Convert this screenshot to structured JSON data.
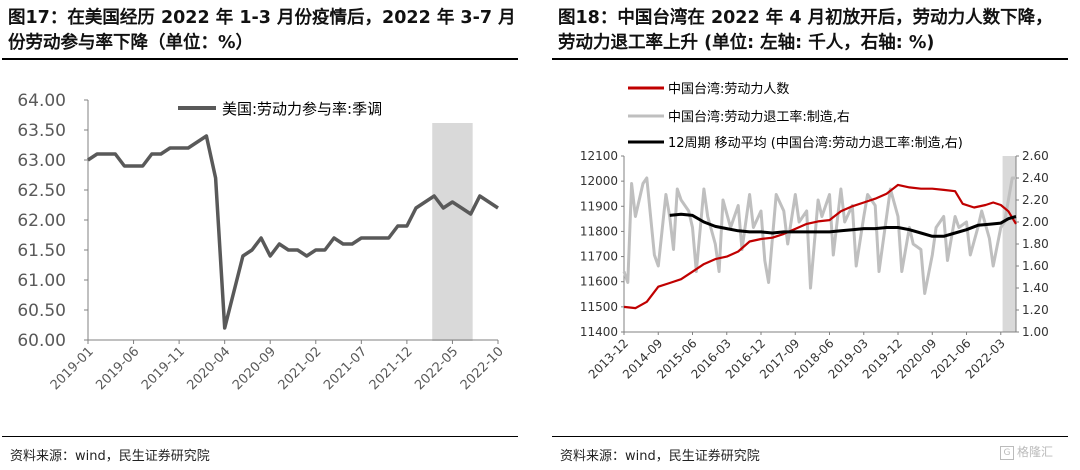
{
  "left_panel": {
    "title": "图17：在美国经历 2022 年 1-3 月份疫情后，2022 年 3-7 月份劳动参与率下降（单位：%）",
    "source": "资料来源：wind，民生证券研究院"
  },
  "right_panel": {
    "title": "图18：中国台湾在 2022 年 4 月初放开后，劳动力人数下降，劳动力退工率上升 (单位: 左轴: 千人，右轴: %)",
    "source": "资料来源：wind，民生证券研究院"
  },
  "watermark": "格隆汇",
  "colors": {
    "us_line": "#595959",
    "tw_labor": "#c00000",
    "tw_quit": "#bfbfbf",
    "tw_ma": "#000000",
    "shade": "#d9d9d9"
  },
  "chart_data": [
    {
      "type": "line",
      "title": "",
      "xlabel": "",
      "ylabel": "",
      "ylim": [
        60.0,
        64.0
      ],
      "y_ticks": [
        "64.00",
        "63.50",
        "63.00",
        "62.50",
        "62.00",
        "61.50",
        "61.00",
        "60.50",
        "60.00"
      ],
      "x_tick_labels": [
        "2019-01",
        "2019-06",
        "2019-11",
        "2020-04",
        "2020-09",
        "2021-02",
        "2021-07",
        "2021-12",
        "2022-05",
        "2022-10"
      ],
      "legend": "top-left",
      "grid": false,
      "shaded_range": [
        "2022-03",
        "2022-07"
      ],
      "x": [
        "2019-01",
        "2019-02",
        "2019-03",
        "2019-04",
        "2019-05",
        "2019-06",
        "2019-07",
        "2019-08",
        "2019-09",
        "2019-10",
        "2019-11",
        "2019-12",
        "2020-01",
        "2020-02",
        "2020-03",
        "2020-04",
        "2020-05",
        "2020-06",
        "2020-07",
        "2020-08",
        "2020-09",
        "2020-10",
        "2020-11",
        "2020-12",
        "2021-01",
        "2021-02",
        "2021-03",
        "2021-04",
        "2021-05",
        "2021-06",
        "2021-07",
        "2021-08",
        "2021-09",
        "2021-10",
        "2021-11",
        "2021-12",
        "2022-01",
        "2022-02",
        "2022-03",
        "2022-04",
        "2022-05",
        "2022-06",
        "2022-07",
        "2022-08",
        "2022-09",
        "2022-10"
      ],
      "series": [
        {
          "name": "美国:劳动力参与率:季调",
          "values": [
            63.0,
            63.1,
            63.1,
            63.1,
            62.9,
            62.9,
            62.9,
            63.1,
            63.1,
            63.2,
            63.2,
            63.2,
            63.3,
            63.4,
            62.7,
            60.2,
            60.8,
            61.4,
            61.5,
            61.7,
            61.4,
            61.6,
            61.5,
            61.5,
            61.4,
            61.5,
            61.5,
            61.7,
            61.6,
            61.6,
            61.7,
            61.7,
            61.7,
            61.7,
            61.9,
            61.9,
            62.2,
            62.3,
            62.4,
            62.2,
            62.3,
            62.2,
            62.1,
            62.4,
            62.3,
            62.2
          ]
        }
      ]
    },
    {
      "type": "line",
      "title": "",
      "xlabel": "",
      "ylabel": "",
      "ylim": [
        11400,
        12100
      ],
      "y2lim": [
        1.0,
        2.6
      ],
      "y_ticks": [
        "12100",
        "12000",
        "11900",
        "11800",
        "11700",
        "11600",
        "11500",
        "11400"
      ],
      "y2_ticks": [
        "2.60",
        "2.40",
        "2.20",
        "2.00",
        "1.80",
        "1.60",
        "1.40",
        "1.20",
        "1.00"
      ],
      "x_tick_labels": [
        "2013-12",
        "2014-09",
        "2015-06",
        "2016-03",
        "2016-12",
        "2017-09",
        "2018-06",
        "2019-03",
        "2019-12",
        "2020-09",
        "2021-06",
        "2022-03"
      ],
      "legend": "top-left",
      "grid": false,
      "shaded_range": [
        "2022-04",
        "2022-07"
      ],
      "x_start": "2013-12",
      "x_end": "2022-07",
      "series": [
        {
          "name": "中国台湾:劳动力人数",
          "axis": "left",
          "points": [
            [
              "2013-12",
              11500
            ],
            [
              "2014-03",
              11495
            ],
            [
              "2014-06",
              11520
            ],
            [
              "2014-09",
              11580
            ],
            [
              "2014-12",
              11595
            ],
            [
              "2015-03",
              11610
            ],
            [
              "2015-06",
              11640
            ],
            [
              "2015-09",
              11670
            ],
            [
              "2015-12",
              11690
            ],
            [
              "2016-03",
              11700
            ],
            [
              "2016-06",
              11720
            ],
            [
              "2016-09",
              11760
            ],
            [
              "2016-12",
              11770
            ],
            [
              "2017-03",
              11775
            ],
            [
              "2017-06",
              11790
            ],
            [
              "2017-09",
              11810
            ],
            [
              "2017-12",
              11830
            ],
            [
              "2018-03",
              11840
            ],
            [
              "2018-06",
              11845
            ],
            [
              "2018-09",
              11880
            ],
            [
              "2018-12",
              11900
            ],
            [
              "2019-03",
              11915
            ],
            [
              "2019-06",
              11930
            ],
            [
              "2019-09",
              11950
            ],
            [
              "2019-12",
              11985
            ],
            [
              "2020-03",
              11975
            ],
            [
              "2020-06",
              11970
            ],
            [
              "2020-09",
              11970
            ],
            [
              "2020-12",
              11965
            ],
            [
              "2021-03",
              11960
            ],
            [
              "2021-05",
              11910
            ],
            [
              "2021-08",
              11895
            ],
            [
              "2021-11",
              11905
            ],
            [
              "2022-01",
              11915
            ],
            [
              "2022-03",
              11905
            ],
            [
              "2022-05",
              11880
            ],
            [
              "2022-07",
              11830
            ]
          ]
        },
        {
          "name": "中国台湾:劳动力退工率:制造,右",
          "axis": "right",
          "points": [
            [
              "2013-12",
              1.55
            ],
            [
              "2014-01",
              1.45
            ],
            [
              "2014-02",
              2.35
            ],
            [
              "2014-03",
              2.05
            ],
            [
              "2014-05",
              2.35
            ],
            [
              "2014-06",
              2.4
            ],
            [
              "2014-08",
              1.7
            ],
            [
              "2014-09",
              1.6
            ],
            [
              "2014-11",
              2.25
            ],
            [
              "2014-12",
              2.05
            ],
            [
              "2015-01",
              1.75
            ],
            [
              "2015-02",
              2.3
            ],
            [
              "2015-03",
              2.2
            ],
            [
              "2015-05",
              2.1
            ],
            [
              "2015-06",
              1.95
            ],
            [
              "2015-07",
              1.55
            ],
            [
              "2015-09",
              2.3
            ],
            [
              "2015-10",
              2.05
            ],
            [
              "2015-12",
              1.8
            ],
            [
              "2016-01",
              1.55
            ],
            [
              "2016-02",
              2.2
            ],
            [
              "2016-04",
              1.95
            ],
            [
              "2016-06",
              2.15
            ],
            [
              "2016-07",
              1.75
            ],
            [
              "2016-09",
              2.25
            ],
            [
              "2016-10",
              1.95
            ],
            [
              "2016-12",
              2.1
            ],
            [
              "2017-01",
              1.65
            ],
            [
              "2017-02",
              1.45
            ],
            [
              "2017-04",
              2.25
            ],
            [
              "2017-06",
              2.1
            ],
            [
              "2017-07",
              1.8
            ],
            [
              "2017-09",
              2.25
            ],
            [
              "2017-10",
              2.0
            ],
            [
              "2017-12",
              2.1
            ],
            [
              "2018-01",
              1.4
            ],
            [
              "2018-03",
              2.2
            ],
            [
              "2018-04",
              2.05
            ],
            [
              "2018-06",
              2.25
            ],
            [
              "2018-07",
              1.7
            ],
            [
              "2018-09",
              2.3
            ],
            [
              "2018-10",
              2.0
            ],
            [
              "2018-12",
              2.15
            ],
            [
              "2019-01",
              1.6
            ],
            [
              "2019-03",
              2.05
            ],
            [
              "2019-04",
              2.25
            ],
            [
              "2019-06",
              2.15
            ],
            [
              "2019-07",
              1.55
            ],
            [
              "2019-09",
              2.05
            ],
            [
              "2019-10",
              2.3
            ],
            [
              "2019-12",
              2.05
            ],
            [
              "2020-01",
              1.55
            ],
            [
              "2020-03",
              1.95
            ],
            [
              "2020-04",
              1.8
            ],
            [
              "2020-06",
              1.75
            ],
            [
              "2020-07",
              1.35
            ],
            [
              "2020-09",
              1.7
            ],
            [
              "2020-10",
              1.95
            ],
            [
              "2020-12",
              2.05
            ],
            [
              "2021-01",
              1.65
            ],
            [
              "2021-03",
              2.05
            ],
            [
              "2021-04",
              1.95
            ],
            [
              "2021-06",
              2.0
            ],
            [
              "2021-07",
              1.7
            ],
            [
              "2021-09",
              1.95
            ],
            [
              "2021-10",
              2.1
            ],
            [
              "2021-12",
              1.85
            ],
            [
              "2022-01",
              1.6
            ],
            [
              "2022-03",
              1.95
            ],
            [
              "2022-04",
              2.0
            ],
            [
              "2022-06",
              2.4
            ],
            [
              "2022-07",
              2.4
            ]
          ]
        },
        {
          "name": "12周期 移动平均 (中国台湾:劳动力退工率:制造,右)",
          "axis": "right",
          "points": [
            [
              "2014-12",
              2.06
            ],
            [
              "2015-03",
              2.07
            ],
            [
              "2015-06",
              2.06
            ],
            [
              "2015-09",
              2.0
            ],
            [
              "2015-12",
              1.96
            ],
            [
              "2016-03",
              1.94
            ],
            [
              "2016-06",
              1.92
            ],
            [
              "2016-09",
              1.91
            ],
            [
              "2016-12",
              1.91
            ],
            [
              "2017-03",
              1.9
            ],
            [
              "2017-06",
              1.91
            ],
            [
              "2017-09",
              1.91
            ],
            [
              "2017-12",
              1.91
            ],
            [
              "2018-03",
              1.91
            ],
            [
              "2018-06",
              1.91
            ],
            [
              "2018-09",
              1.92
            ],
            [
              "2018-12",
              1.93
            ],
            [
              "2019-03",
              1.94
            ],
            [
              "2019-06",
              1.94
            ],
            [
              "2019-09",
              1.95
            ],
            [
              "2019-12",
              1.95
            ],
            [
              "2020-03",
              1.93
            ],
            [
              "2020-06",
              1.9
            ],
            [
              "2020-09",
              1.87
            ],
            [
              "2020-12",
              1.87
            ],
            [
              "2021-03",
              1.9
            ],
            [
              "2021-06",
              1.93
            ],
            [
              "2021-09",
              1.97
            ],
            [
              "2021-12",
              1.98
            ],
            [
              "2022-03",
              1.99
            ],
            [
              "2022-05",
              2.03
            ],
            [
              "2022-07",
              2.05
            ]
          ]
        }
      ]
    }
  ]
}
